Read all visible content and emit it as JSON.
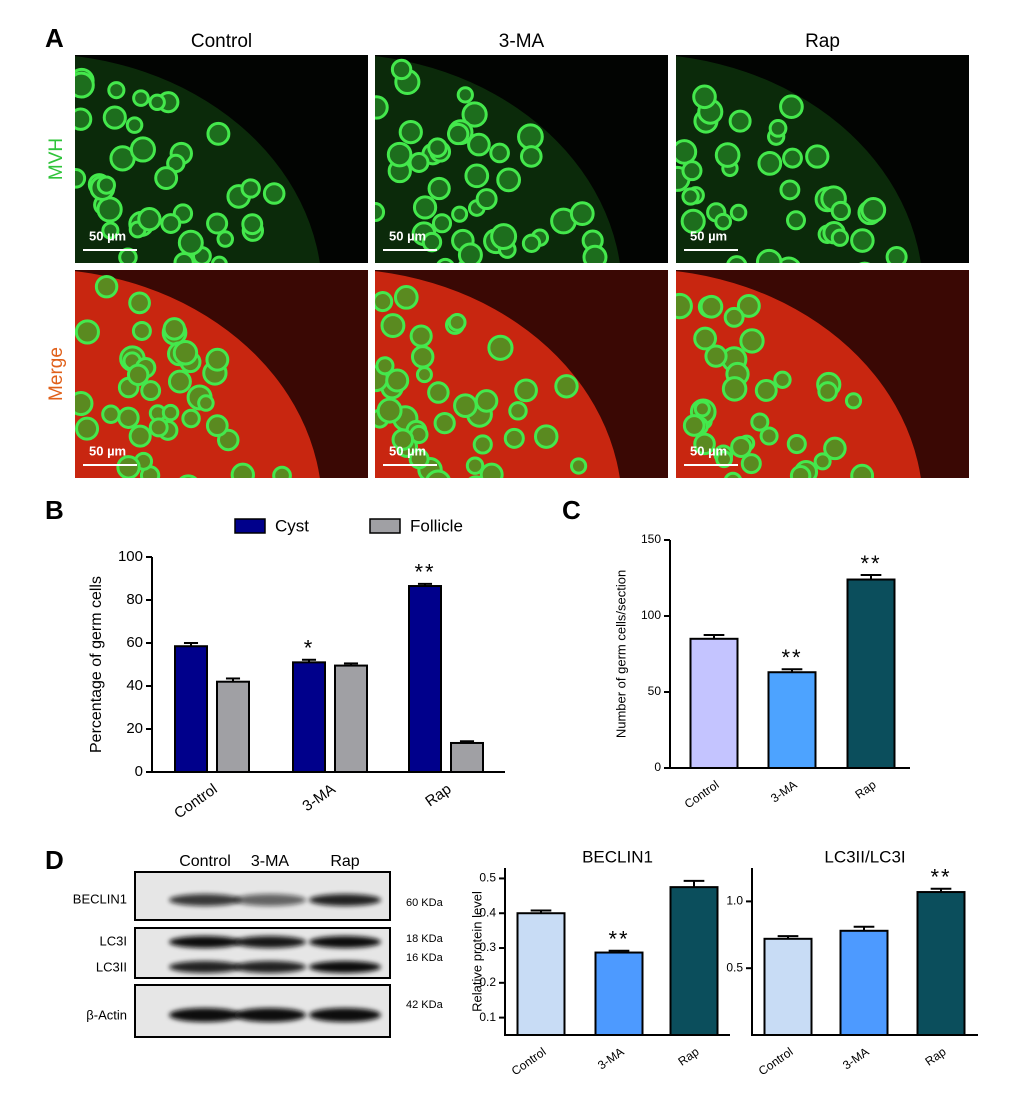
{
  "panel_labels": [
    "A",
    "B",
    "C",
    "D"
  ],
  "figure_a": {
    "columns": [
      "Control",
      "3-MA",
      "Rap"
    ],
    "rows": [
      "MVH",
      "Merge"
    ],
    "scale_bar": "50 µm"
  },
  "blot": {
    "columns": [
      "Control",
      "3-MA",
      "Rap"
    ],
    "bands": [
      "BECLIN1",
      "LC3I",
      "LC3II",
      "β-Actin"
    ],
    "sizes": [
      "60 KDa",
      "18 KDa",
      "16 KDa",
      "42 KDa"
    ]
  },
  "chart_data": [
    {
      "type": "bar",
      "y_label": "Percentage of germ cells",
      "categories": [
        "Control",
        "3-MA",
        "Rap"
      ],
      "series": [
        {
          "name": "Cyst",
          "color": "#00008b",
          "values": [
            58.5,
            51,
            86.5
          ],
          "errors": [
            1.5,
            1.2,
            1
          ],
          "annotations": [
            null,
            "*",
            "**"
          ]
        },
        {
          "name": "Follicle",
          "color": "#a0a0a4",
          "values": [
            42,
            49.5,
            13.5
          ],
          "errors": [
            1.5,
            1,
            0.8
          ],
          "annotations": [
            null,
            null,
            null
          ]
        }
      ],
      "ylim": [
        0,
        100
      ],
      "yticks": [
        0,
        20,
        40,
        60,
        80,
        100
      ],
      "legend": "top"
    },
    {
      "type": "bar",
      "y_label": "Number of germ cells/section",
      "categories": [
        "Control",
        "3-MA",
        "Rap"
      ],
      "values": [
        85,
        63,
        124
      ],
      "errors": [
        2.5,
        2,
        3
      ],
      "annotations": [
        null,
        "**",
        "**"
      ],
      "colors": [
        "#c4c4ff",
        "#4da3ff",
        "#0b4e5c"
      ],
      "ylim": [
        0,
        150
      ],
      "yticks": [
        0,
        50,
        100,
        150
      ]
    },
    {
      "type": "bar",
      "title": "BECLIN1",
      "y_label": "Relative protein  level",
      "categories": [
        "Control",
        "3-MA",
        "Rap"
      ],
      "values": [
        0.4,
        0.287,
        0.475
      ],
      "errors": [
        0.008,
        0.005,
        0.018
      ],
      "annotations": [
        null,
        "**",
        null
      ],
      "colors": [
        "#c8dcf5",
        "#4d9aff",
        "#0b4e5c"
      ],
      "ylim": [
        0.05,
        0.53
      ],
      "yticks": [
        0.1,
        0.2,
        0.3,
        0.4,
        0.5
      ]
    },
    {
      "type": "bar",
      "title": "LC3II/LC3I",
      "categories": [
        "Control",
        "3-MA",
        "Rap"
      ],
      "values": [
        0.72,
        0.78,
        1.07
      ],
      "errors": [
        0.02,
        0.03,
        0.025
      ],
      "annotations": [
        null,
        null,
        "**"
      ],
      "colors": [
        "#c8dcf5",
        "#4d9aff",
        "#0b4e5c"
      ],
      "ylim": [
        0,
        1.25
      ],
      "yticks": [
        0.5,
        {
          "value": 1,
          "label": "1.0"
        }
      ]
    }
  ]
}
